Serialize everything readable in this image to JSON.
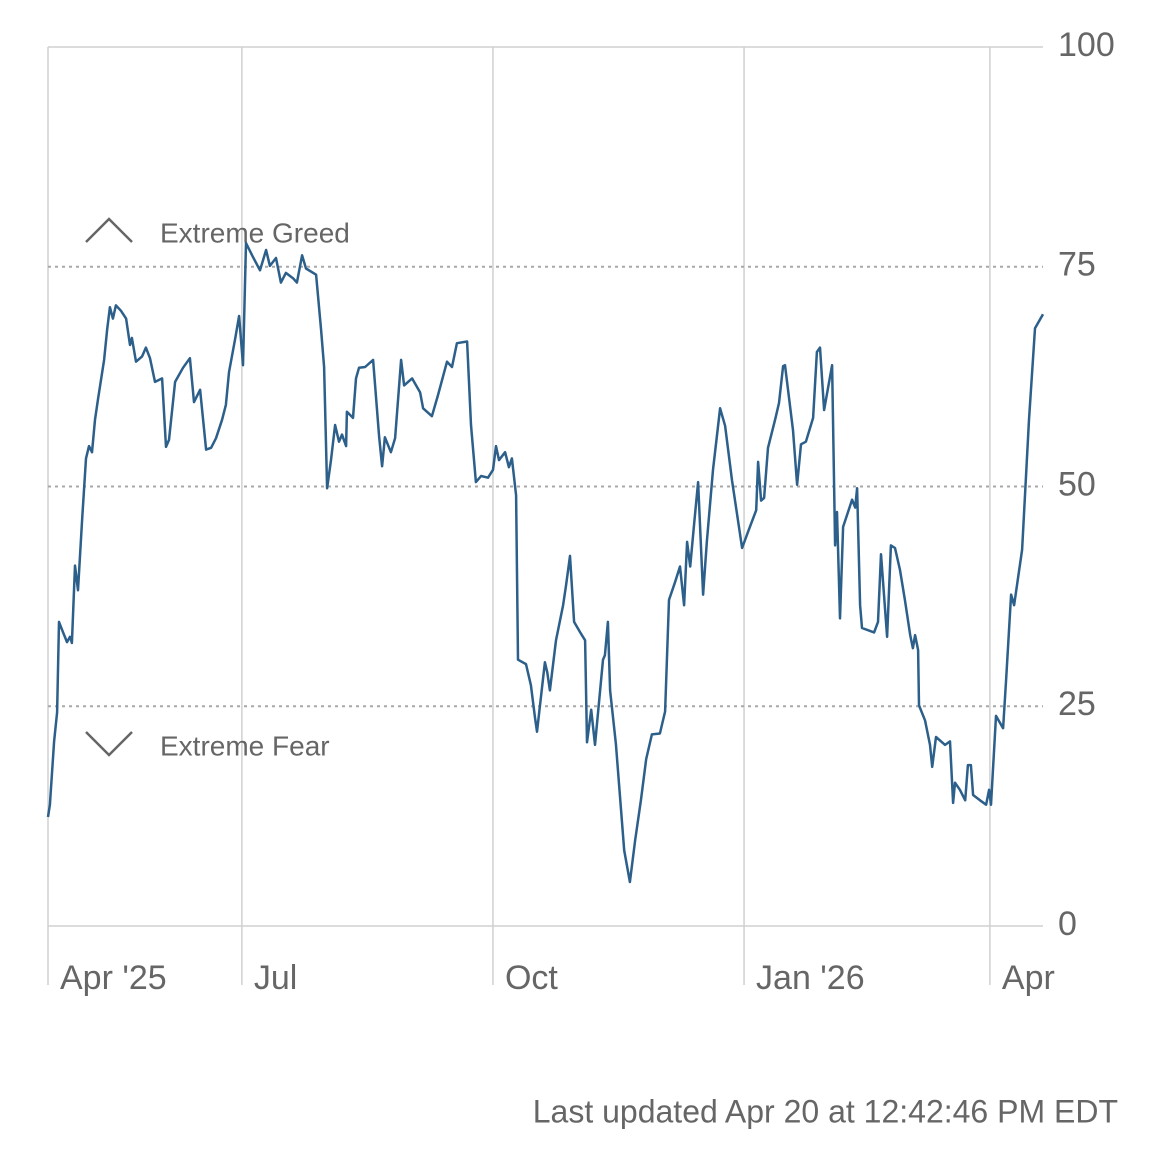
{
  "chart_data": {
    "type": "line",
    "annotations": [
      "Extreme Greed",
      "Extreme Fear"
    ],
    "footer": "Last updated Apr 20 at 12:42:46 PM EDT",
    "color": "#2c5f8a",
    "xlim": [
      0,
      361.8
    ],
    "xticks": [
      {
        "value": 0,
        "label": "Apr '25"
      },
      {
        "value": 70.5,
        "label": "Jul"
      },
      {
        "value": 161.8,
        "label": "Oct"
      },
      {
        "value": 253.1,
        "label": "Jan '26"
      },
      {
        "value": 342.5,
        "label": "Apr"
      }
    ],
    "ylim": [
      0,
      100
    ],
    "yticks": [
      0,
      25,
      50,
      75,
      100
    ],
    "grid": true,
    "x": [
      0,
      0.7,
      2.2,
      3.3,
      4,
      5.5,
      6.9,
      8,
      8.7,
      9.8,
      10.9,
      12.4,
      13.8,
      14.9,
      16,
      17.1,
      18.2,
      20.4,
      21.5,
      22.5,
      23.6,
      24.7,
      26.5,
      28.4,
      29.8,
      30.5,
      32,
      34.2,
      35.6,
      37.1,
      38.9,
      41.5,
      42.9,
      44,
      46.2,
      49.1,
      51.6,
      53.1,
      55.3,
      57.5,
      59.3,
      61.1,
      63.3,
      64.7,
      65.8,
      68,
      69.5,
      70.9,
      72,
      74.2,
      77.1,
      79.3,
      80.7,
      82.9,
      84.7,
      86.5,
      89.1,
      90.5,
      92.4,
      93.8,
      97.5,
      99.3,
      100.4,
      101.5,
      102.9,
      104.4,
      105.8,
      106.9,
      108.4,
      108.7,
      110.9,
      112,
      113.1,
      115.3,
      118.2,
      120.4,
      121.5,
      122.5,
      124.7,
      126.2,
      128.4,
      129.5,
      132.4,
      135.3,
      136.4,
      139.6,
      141.8,
      145.1,
      146.9,
      148.7,
      152.4,
      153.8,
      155.6,
      157.5,
      160,
      161.8,
      162.9,
      164,
      166.2,
      167.6,
      168.7,
      170.2,
      170.9,
      173.8,
      175.6,
      177.1,
      177.8,
      180.7,
      181.5,
      182.5,
      184.7,
      187.3,
      188.4,
      189.8,
      191.3,
      193.5,
      195.3,
      196,
      197.5,
      198.9,
      201.8,
      202.5,
      203.6,
      204.4,
      206.5,
      209.5,
      211.6,
      213.5,
      215.6,
      217.5,
      219.6,
      222.5,
      224.4,
      225.8,
      228,
      229.8,
      231.3,
      232.4,
      233.5,
      234.9,
      236.4,
      238.2,
      239.6,
      241.8,
      244.4,
      246.2,
      248.7,
      252.4,
      254.5,
      257.5,
      258.2,
      259.3,
      260.4,
      261.8,
      264.4,
      265.8,
      267.3,
      268,
      270.9,
      272.4,
      273.8,
      275.6,
      278.2,
      279.6,
      280.7,
      282.2,
      285.1,
      286.2,
      286.9,
      288,
      289.1,
      292.4,
      293.5,
      294.2,
      295.3,
      296,
      300.4,
      301.8,
      302.9,
      305.1,
      306.5,
      308,
      309.8,
      311.6,
      313.5,
      314.5,
      315.3,
      316.4,
      316.7,
      318.9,
      320.7,
      321.5,
      322.9,
      326.2,
      328,
      329.1,
      329.8,
      331.6,
      333.5,
      334.5,
      335.6,
      336.4,
      338.9,
      341.1,
      342.2,
      342.9,
      344.7,
      347.3,
      348.4,
      350.2,
      351.3,
      354.2,
      356.7,
      358.9,
      361.8
    ],
    "values": [
      12.4,
      13.8,
      21,
      24.3,
      34.6,
      33.4,
      32.3,
      32.9,
      32.2,
      41,
      38.2,
      46.2,
      53.2,
      54.6,
      53.9,
      57.6,
      60,
      64.4,
      67.8,
      70.4,
      69.1,
      70.6,
      70,
      69.1,
      66.1,
      66.9,
      64.2,
      64.8,
      65.8,
      64.6,
      61.9,
      62.3,
      54.5,
      55.3,
      61.9,
      63.5,
      64.6,
      59.6,
      61,
      54.2,
      54.4,
      55.5,
      57.6,
      59.3,
      63,
      66.7,
      69.4,
      63.8,
      77.7,
      76.3,
      74.6,
      76.9,
      75.1,
      76,
      73.2,
      74.3,
      73.7,
      73.2,
      76.3,
      74.8,
      74.1,
      67.8,
      63.6,
      49.8,
      53,
      57,
      55.1,
      55.9,
      54.6,
      58.5,
      57.8,
      62.3,
      63.5,
      63.6,
      64.4,
      55.7,
      52.3,
      55.6,
      53.9,
      55.5,
      64.4,
      61.5,
      62.3,
      60.7,
      58.9,
      58,
      60.4,
      64.2,
      63.6,
      66.3,
      66.5,
      57,
      50.5,
      51.2,
      51,
      51.9,
      54.6,
      53,
      53.9,
      52.2,
      53.2,
      49,
      30.3,
      29.8,
      27.4,
      23.7,
      22.1,
      30,
      28.9,
      26.8,
      32.5,
      36.5,
      38.8,
      42.1,
      34.6,
      33.4,
      32.5,
      20.9,
      24.6,
      20.6,
      30.3,
      30.8,
      34.6,
      26.8,
      20.7,
      8.6,
      5,
      9.8,
      14.3,
      19,
      21.8,
      21.9,
      24.4,
      37.1,
      39.1,
      40.9,
      36.5,
      43.7,
      40.9,
      45.6,
      50.5,
      37.7,
      43.8,
      51.9,
      58.9,
      56.9,
      50.7,
      43,
      44.8,
      47.3,
      52.8,
      48.4,
      48.7,
      54.4,
      57.6,
      59.5,
      63.7,
      63.8,
      56.4,
      50.2,
      54.8,
      55.1,
      57.8,
      65.3,
      65.8,
      58.7,
      63.8,
      43.3,
      47.1,
      35,
      45.4,
      48.5,
      47.6,
      49.8,
      36.5,
      33.9,
      33.4,
      34.6,
      42.3,
      32.9,
      43.3,
      43,
      40.5,
      37.1,
      33.1,
      31.6,
      33.1,
      31.4,
      25.1,
      23.4,
      20.6,
      18.1,
      21.5,
      20.6,
      21,
      14,
      16.3,
      15.5,
      14.3,
      18.3,
      18.3,
      14.9,
      14.3,
      13.8,
      15.5,
      13.8,
      23.9,
      22.5,
      28,
      37.7,
      36.5,
      42.8,
      57.6,
      68,
      69.6
    ]
  }
}
